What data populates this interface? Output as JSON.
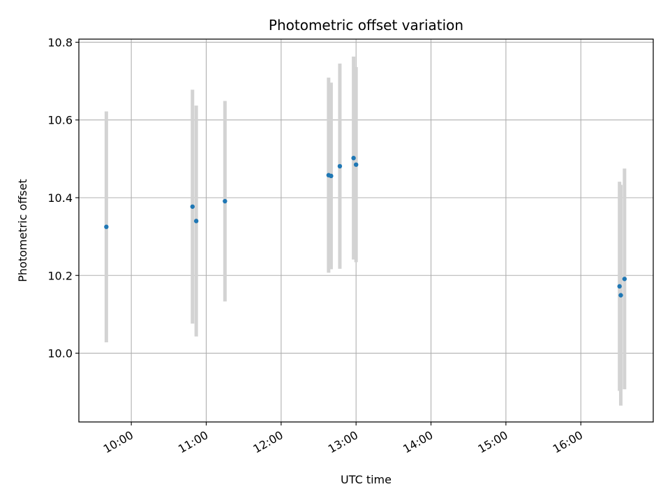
{
  "chart_data": {
    "type": "scatter",
    "title": "Photometric offset variation",
    "xlabel": "UTC time",
    "ylabel": "Photometric offset",
    "x_axis_format": "time HH:MM",
    "xlim": [
      "09:18",
      "16:58"
    ],
    "ylim": [
      9.823,
      10.808
    ],
    "x_ticks": [
      "10:00",
      "11:00",
      "12:00",
      "13:00",
      "14:00",
      "15:00",
      "16:00"
    ],
    "y_ticks": [
      "10.0",
      "10.2",
      "10.4",
      "10.6",
      "10.8"
    ],
    "grid": true,
    "legend": "none",
    "point_color": "#1f77b4",
    "errorbar_color": "#d3d3d3",
    "series": [
      {
        "points": [
          {
            "x": "09:40",
            "y": 10.325,
            "ymin": 10.028,
            "ymax": 10.622
          },
          {
            "x": "10:49",
            "y": 10.377,
            "ymin": 10.076,
            "ymax": 10.678
          },
          {
            "x": "10:52",
            "y": 10.34,
            "ymin": 10.043,
            "ymax": 10.637
          },
          {
            "x": "11:15",
            "y": 10.391,
            "ymin": 10.133,
            "ymax": 10.649
          },
          {
            "x": "12:38",
            "y": 10.458,
            "ymin": 10.207,
            "ymax": 10.709
          },
          {
            "x": "12:40",
            "y": 10.456,
            "ymin": 10.216,
            "ymax": 10.696
          },
          {
            "x": "12:47",
            "y": 10.481,
            "ymin": 10.217,
            "ymax": 10.745
          },
          {
            "x": "12:58",
            "y": 10.502,
            "ymin": 10.241,
            "ymax": 10.763
          },
          {
            "x": "13:00",
            "y": 10.485,
            "ymin": 10.234,
            "ymax": 10.736
          },
          {
            "x": "16:31",
            "y": 10.172,
            "ymin": 9.903,
            "ymax": 10.441
          },
          {
            "x": "16:32",
            "y": 10.149,
            "ymin": 9.865,
            "ymax": 10.433
          },
          {
            "x": "16:35",
            "y": 10.191,
            "ymin": 9.907,
            "ymax": 10.475
          }
        ]
      }
    ]
  }
}
